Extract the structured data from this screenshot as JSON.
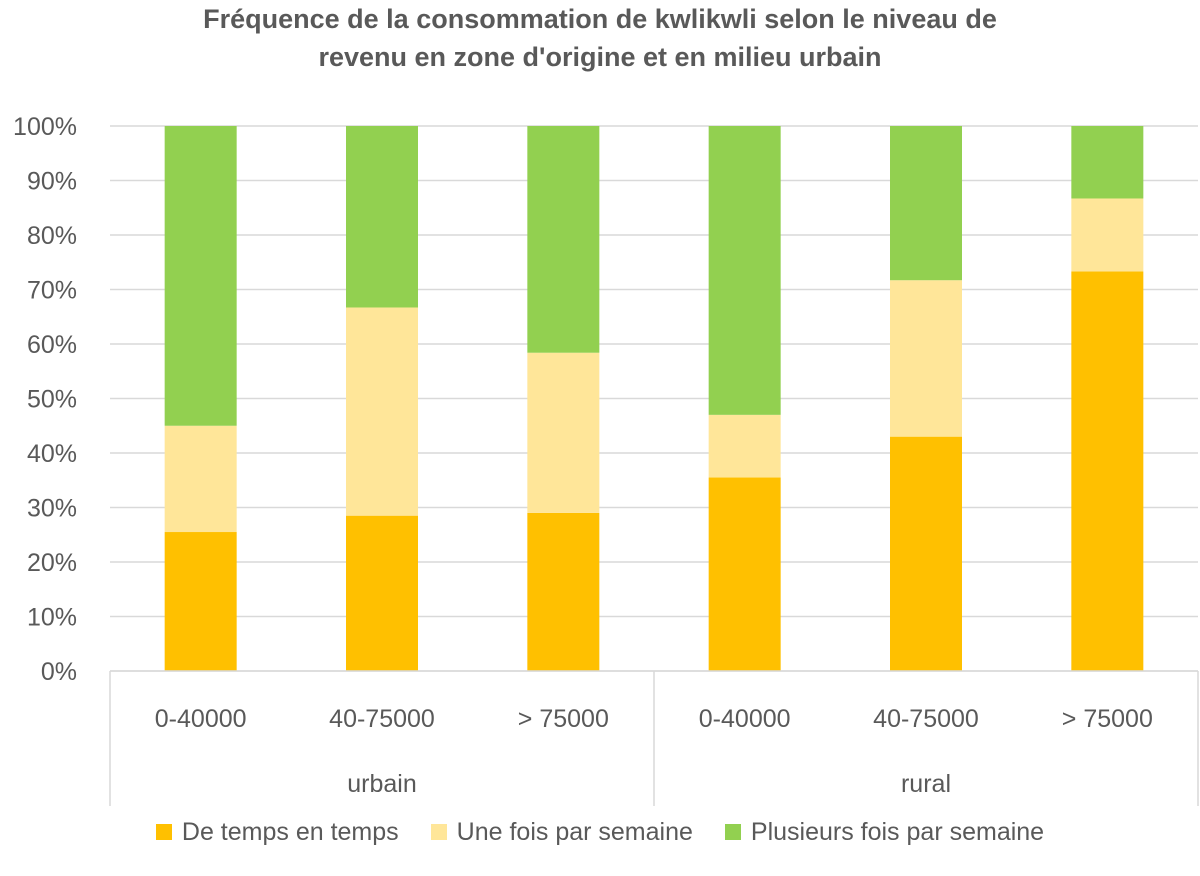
{
  "chart_data": {
    "type": "bar",
    "stacked": "percent",
    "title_lines": [
      "Fréquence de la consommation de kwlikwli selon le niveau de",
      "revenu en zone d'origine et en milieu urbain"
    ],
    "categories": [
      "0-40000",
      "40-75000",
      "> 75000",
      "0-40000",
      "40-75000",
      "> 75000"
    ],
    "groups": [
      {
        "label": "urbain",
        "categories": [
          "0-40000",
          "40-75000",
          "> 75000"
        ]
      },
      {
        "label": "rural",
        "categories": [
          "0-40000",
          "40-75000",
          "> 75000"
        ]
      }
    ],
    "series": [
      {
        "name": "De temps en temps",
        "color": "#FFC000",
        "values": [
          25.5,
          28.5,
          29,
          35.5,
          43,
          73.3
        ]
      },
      {
        "name": "Une fois par semaine",
        "color": "#FFE699",
        "values": [
          19.5,
          38.2,
          29.4,
          11.5,
          28.7,
          13.4
        ]
      },
      {
        "name": "Plusieurs fois par semaine",
        "color": "#92D050",
        "values": [
          55,
          33.3,
          41.6,
          53,
          28.3,
          13.3
        ]
      }
    ],
    "ylim": [
      0,
      100
    ],
    "yticks": [
      "0%",
      "10%",
      "20%",
      "30%",
      "40%",
      "50%",
      "60%",
      "70%",
      "80%",
      "90%",
      "100%"
    ],
    "grid": true,
    "legend_position": "bottom",
    "xlabel": "",
    "ylabel": ""
  }
}
